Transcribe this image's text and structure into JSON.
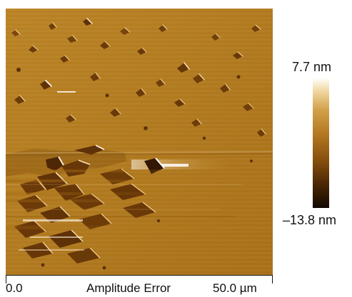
{
  "image": {
    "colormap_name": "afm-copper",
    "colors": {
      "base": "#b27a1d",
      "dark": "#5a2f08",
      "mid": "#8a5712",
      "light": "#e7c07b",
      "highlight": "#fffdf8"
    }
  },
  "scale": {
    "start_label": "0.0",
    "end_label": "50.0 µm",
    "channel_label": "Amplitude Error"
  },
  "colorbar": {
    "max_label": "7.7 nm",
    "min_label": "–13.8 nm"
  }
}
